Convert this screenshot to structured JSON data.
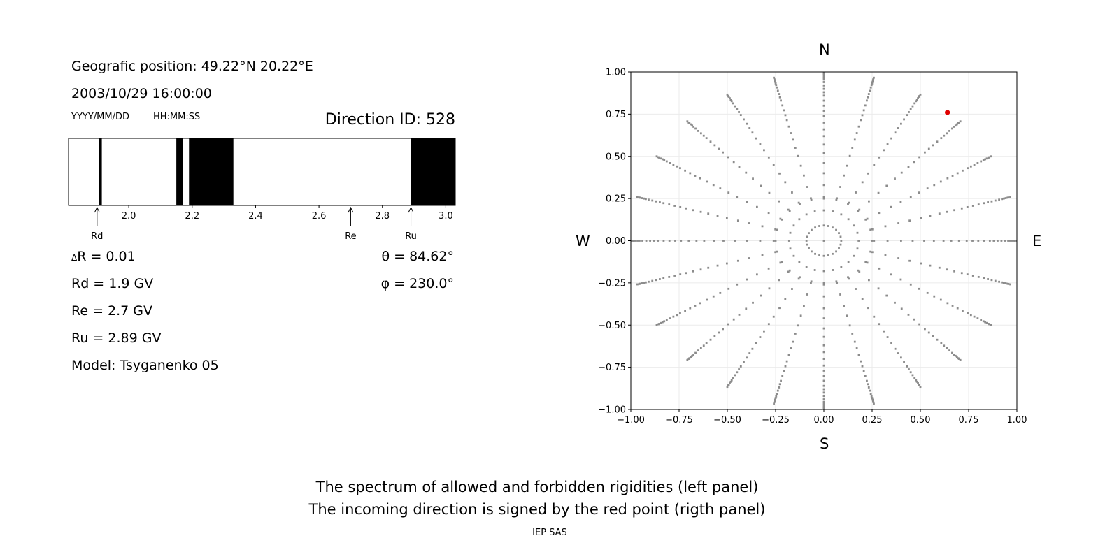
{
  "header": {
    "position": "Geografic position: 49.22°N 20.22°E",
    "datetime": "2003/10/29 16:00:00",
    "date_format": "YYYY/MM/DD",
    "time_format": "HH:MM:SS",
    "direction": "Direction ID: 528"
  },
  "params_left": {
    "delta_r_symbol": "Δ",
    "delta_r_rest": "R = 0.01",
    "rd": "Rd = 1.9 GV",
    "re": "Re = 2.7 GV",
    "ru": "Ru = 2.89 GV",
    "model": "Model: Tsyganenko 05"
  },
  "params_right": {
    "theta": "θ = 84.62°",
    "phi": "φ = 230.0°"
  },
  "compass": {
    "north": "N",
    "south": "S",
    "west": "W",
    "east": "E"
  },
  "captions": {
    "line1": "The spectrum of allowed and forbidden rigidities (left panel)",
    "line2": "The incoming direction is signed by the red point (rigth panel)",
    "footer": "IEP SAS"
  },
  "chart_data": [
    {
      "type": "bar",
      "xlim": [
        1.81,
        3.03
      ],
      "xticks": [
        2.0,
        2.2,
        2.4,
        2.6,
        2.8,
        3.0
      ],
      "xtick_labels": [
        "2.0",
        "2.2",
        "2.4",
        "2.6",
        "2.8",
        "3.0"
      ],
      "forbidden_bands": [
        [
          1.905,
          1.915
        ],
        [
          2.15,
          2.17
        ],
        [
          2.19,
          2.33
        ],
        [
          2.89,
          3.03
        ]
      ],
      "markers": [
        {
          "label": "Rd",
          "value": 1.9
        },
        {
          "label": "Re",
          "value": 2.7
        },
        {
          "label": "Ru",
          "value": 2.89
        }
      ],
      "colors": {
        "forbidden": "#000000",
        "allowed": "#ffffff"
      }
    },
    {
      "type": "scatter",
      "xlim": [
        -1.0,
        1.0
      ],
      "ylim": [
        -1.0,
        1.0
      ],
      "xticks": [
        -1.0,
        -0.75,
        -0.5,
        -0.25,
        0.0,
        0.25,
        0.5,
        0.75,
        1.0
      ],
      "yticks": [
        -1.0,
        -0.75,
        -0.5,
        -0.25,
        0.0,
        0.25,
        0.5,
        0.75,
        1.0
      ],
      "xtick_labels": [
        "−1.00",
        "−0.75",
        "−0.50",
        "−0.25",
        "0.00",
        "0.25",
        "0.50",
        "0.75",
        "1.00"
      ],
      "ytick_labels": [
        "−1.00",
        "−0.75",
        "−0.50",
        "−0.25",
        "0.00",
        "0.25",
        "0.50",
        "0.75",
        "1.00"
      ],
      "grid": true,
      "grid_spokes": {
        "azimuths_deg": [
          0,
          15,
          30,
          45,
          60,
          75,
          90,
          105,
          120,
          135,
          150,
          165,
          180,
          195,
          210,
          225,
          240,
          255,
          270,
          285,
          300,
          315,
          330,
          345
        ],
        "radii": [
          0.09,
          0.18,
          0.26,
          0.33,
          0.4,
          0.46,
          0.52,
          0.57,
          0.62,
          0.66,
          0.7,
          0.74,
          0.77,
          0.8,
          0.83,
          0.86,
          0.88,
          0.9,
          0.92,
          0.94,
          0.955,
          0.965,
          0.975,
          0.985,
          0.99,
          1.0
        ],
        "inner_circle_radius": 0.25,
        "inner_circle_points": 24,
        "color": "#8c8c8c"
      },
      "highlight_point": {
        "x": 0.64,
        "y": 0.76,
        "color": "#e00000"
      }
    }
  ]
}
